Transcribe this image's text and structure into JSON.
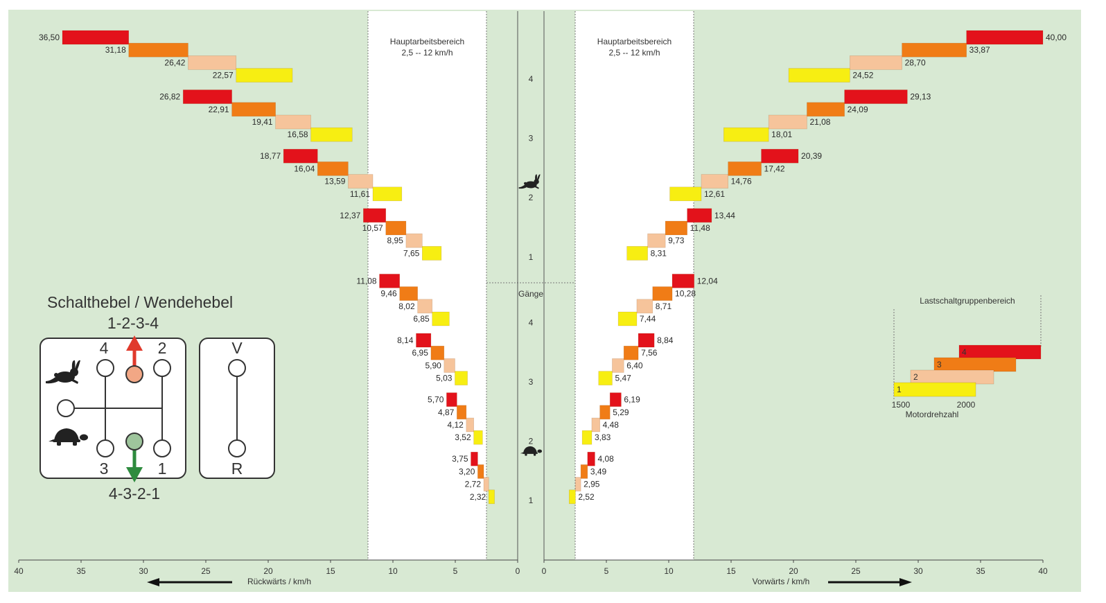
{
  "chart_data": {
    "type": "bar",
    "work_area": {
      "title": "Hauptarbeitsbereich",
      "range": "2,5 -- 12 km/h",
      "min": 2.5,
      "max": 12
    },
    "gears_label": "Gänge",
    "colors": [
      "#e3121b",
      "#f07c16",
      "#f6c49b",
      "#f7ee12"
    ],
    "groups": [
      {
        "range": "high",
        "gears": [
          {
            "gear": "4",
            "forward": [
              40.0,
              33.87,
              28.7,
              24.52
            ],
            "forward_labels": [
              "40,00",
              "33,87",
              "28,70",
              "24,52"
            ],
            "reverse": [
              36.5,
              31.18,
              26.42,
              22.57
            ],
            "reverse_labels": [
              "36,50",
              "31,18",
              "26,42",
              "22,57"
            ]
          },
          {
            "gear": "3",
            "forward": [
              29.13,
              24.09,
              21.08,
              18.01
            ],
            "forward_labels": [
              "29,13",
              "24,09",
              "21,08",
              "18,01"
            ],
            "reverse": [
              26.82,
              22.91,
              19.41,
              16.58
            ],
            "reverse_labels": [
              "26,82",
              "22,91",
              "19,41",
              "16,58"
            ]
          },
          {
            "gear": "2",
            "forward": [
              20.39,
              17.42,
              14.76,
              12.61
            ],
            "forward_labels": [
              "20,39",
              "17,42",
              "14,76",
              "12,61"
            ],
            "reverse": [
              18.77,
              16.04,
              13.59,
              11.61
            ],
            "reverse_labels": [
              "18,77",
              "16,04",
              "13,59",
              "11,61"
            ]
          },
          {
            "gear": "1",
            "forward": [
              13.44,
              11.48,
              9.73,
              8.31
            ],
            "forward_labels": [
              "13,44",
              "11,48",
              "9,73",
              "8,31"
            ],
            "reverse": [
              12.37,
              10.57,
              8.95,
              7.65
            ],
            "reverse_labels": [
              "12,37",
              "10,57",
              "8,95",
              "7,65"
            ]
          }
        ]
      },
      {
        "range": "low",
        "gears": [
          {
            "gear": "4",
            "forward": [
              12.04,
              10.28,
              8.71,
              7.44
            ],
            "forward_labels": [
              "12,04",
              "10,28",
              "8,71",
              "7,44"
            ],
            "reverse": [
              11.08,
              9.46,
              8.02,
              6.85
            ],
            "reverse_labels": [
              "11,08",
              "9,46",
              "8,02",
              "6,85"
            ]
          },
          {
            "gear": "3",
            "forward": [
              8.84,
              7.56,
              6.4,
              5.47
            ],
            "forward_labels": [
              "8,84",
              "7,56",
              "6,40",
              "5,47"
            ],
            "reverse": [
              8.14,
              6.95,
              5.9,
              5.03
            ],
            "reverse_labels": [
              "8,14",
              "6,95",
              "5,90",
              "5,03"
            ]
          },
          {
            "gear": "2",
            "forward": [
              6.19,
              5.29,
              4.48,
              3.83
            ],
            "forward_labels": [
              "6,19",
              "5,29",
              "4,48",
              "3,83"
            ],
            "reverse": [
              5.7,
              4.87,
              4.12,
              3.52
            ],
            "reverse_labels": [
              "5,70",
              "4,87",
              "4,12",
              "3,52"
            ]
          },
          {
            "gear": "1",
            "forward": [
              4.08,
              3.49,
              2.95,
              2.52
            ],
            "forward_labels": [
              "4,08",
              "3,49",
              "2,95",
              "2,52"
            ],
            "reverse": [
              3.75,
              3.2,
              2.72,
              2.32
            ],
            "reverse_labels": [
              "3,75",
              "3,20",
              "2,72",
              "2,32"
            ]
          }
        ]
      }
    ],
    "x_reverse": {
      "label": "Rückwärts / km/h",
      "ticks": [
        "40",
        "35",
        "30",
        "25",
        "20",
        "15",
        "10",
        "5",
        "0"
      ],
      "range": [
        40,
        0
      ]
    },
    "x_forward": {
      "label": "Vorwärts / km/h",
      "ticks": [
        "0",
        "5",
        "10",
        "15",
        "20",
        "25",
        "30",
        "35",
        "40"
      ],
      "range": [
        0,
        40
      ]
    },
    "inset": {
      "title": "Lastschaltgruppenbereich",
      "levels": [
        "1",
        "2",
        "3",
        "4"
      ],
      "x_ticks": [
        "1500",
        "2000"
      ],
      "x_label": "Motordrehzahl"
    },
    "shift_panel": {
      "title": "Schalthebel / Wendehebel",
      "up_sequence": "1-2-3-4",
      "down_sequence": "4-3-2-1",
      "gate_labels": [
        "4",
        "2",
        "3",
        "1"
      ],
      "reverser_labels": [
        "V",
        "R"
      ],
      "up_color": "#e03a2c",
      "down_color": "#2e8b3e"
    },
    "icons": {
      "fast": "hare-icon",
      "slow": "tortoise-icon"
    },
    "background_color": "#d8e9d3",
    "work_area_color": "#ffffff"
  }
}
